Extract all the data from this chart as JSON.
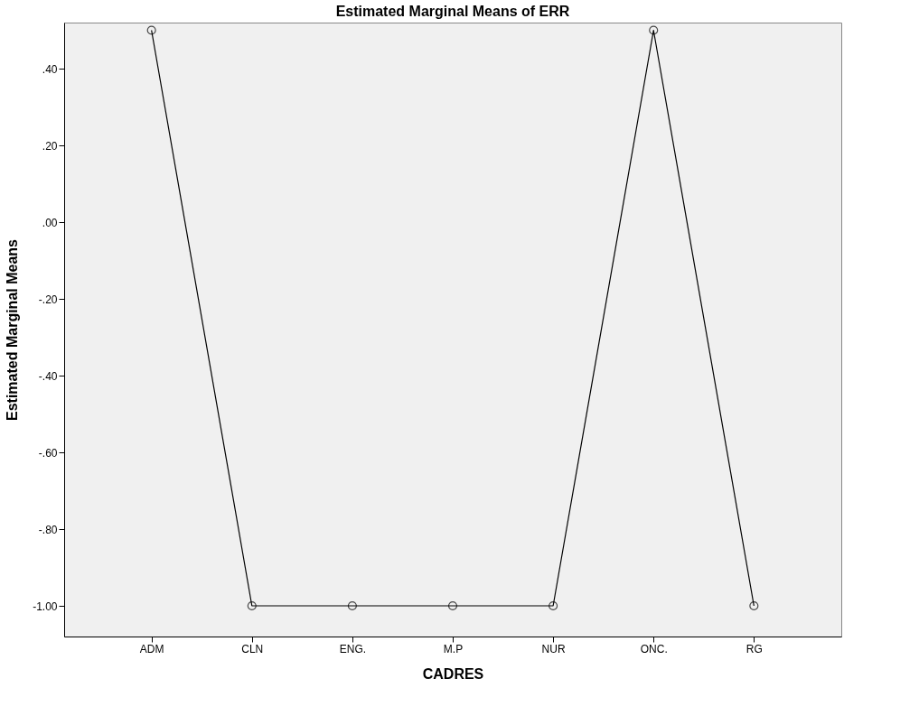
{
  "chart_data": {
    "type": "line",
    "title": "Estimated Marginal Means of ERR",
    "xlabel": "CADRES",
    "ylabel": "Estimated Marginal Means",
    "categories": [
      "ADM",
      "CLN",
      "ENG.",
      "M.P",
      "NUR",
      "ONC.",
      "RG"
    ],
    "series": [
      {
        "color": "#000000",
        "values": [
          0.5,
          -1.0,
          -1.0,
          -1.0,
          -1.0,
          0.5,
          -1.0
        ]
      }
    ],
    "ylim": [
      -1.08,
      0.52
    ],
    "yticks": [
      {
        "value": -1.0,
        "label": "-1.00"
      },
      {
        "value": -0.8,
        "label": "-.80"
      },
      {
        "value": -0.6,
        "label": "-.60"
      },
      {
        "value": -0.4,
        "label": "-.40"
      },
      {
        "value": -0.2,
        "label": "-.20"
      },
      {
        "value": 0.0,
        "label": ".00"
      },
      {
        "value": 0.2,
        "label": ".20"
      },
      {
        "value": 0.4,
        "label": ".40"
      }
    ],
    "grid": false,
    "marker": "circle",
    "line_style": "solid"
  }
}
